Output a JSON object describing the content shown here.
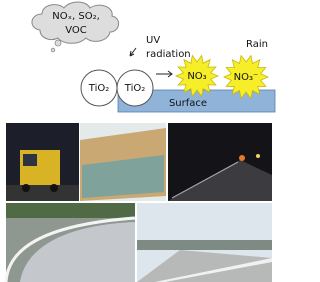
{
  "diagram": {
    "cloud": {
      "lines": [
        "NOₓ, SO₂,",
        "VOC"
      ]
    },
    "uv": {
      "lines": [
        "UV",
        "radiation"
      ]
    },
    "rain": "Rain",
    "particles": [
      "TiO₂",
      "TiO₂"
    ],
    "products": [
      "NO₃",
      "NO₃⁻"
    ],
    "surface": "Surface"
  }
}
